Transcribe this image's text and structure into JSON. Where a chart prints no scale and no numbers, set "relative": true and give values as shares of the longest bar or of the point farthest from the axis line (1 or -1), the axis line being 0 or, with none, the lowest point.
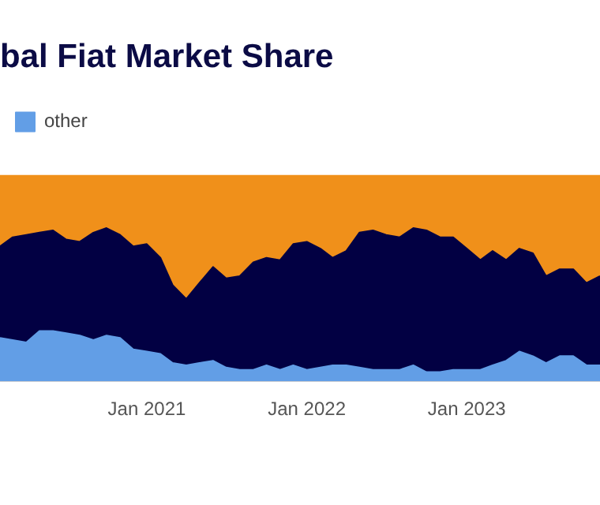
{
  "chart_data": {
    "type": "area",
    "title": "bal Fiat Market Share",
    "stacked": true,
    "relative": true,
    "legend": "top left",
    "grid": false,
    "x": [
      "2020-02",
      "2020-03",
      "2020-04",
      "2020-05",
      "2020-06",
      "2020-07",
      "2020-08",
      "2020-09",
      "2020-10",
      "2020-11",
      "2020-12",
      "2021-01",
      "2021-02",
      "2021-03",
      "2021-04",
      "2021-05",
      "2021-06",
      "2021-07",
      "2021-08",
      "2021-09",
      "2021-10",
      "2021-11",
      "2021-12",
      "2022-01",
      "2022-02",
      "2022-03",
      "2022-04",
      "2022-05",
      "2022-06",
      "2022-07",
      "2022-08",
      "2022-09",
      "2022-10",
      "2022-11",
      "2022-12",
      "2023-01",
      "2023-02",
      "2023-03",
      "2023-04",
      "2023-05",
      "2023-06",
      "2023-07",
      "2023-08",
      "2023-09",
      "2023-10",
      "2023-11"
    ],
    "xlim": [
      "2020-02",
      "2023-11"
    ],
    "xticks": [
      {
        "value": "2021-01",
        "label": "Jan 2021"
      },
      {
        "value": "2022-01",
        "label": "Jan 2022"
      },
      {
        "value": "2023-01",
        "label": "Jan 2023"
      }
    ],
    "series": [
      {
        "name": "other",
        "color": "#629ee6",
        "values": [
          0.29,
          0.28,
          0.27,
          0.32,
          0.32,
          0.31,
          0.3,
          0.28,
          0.3,
          0.29,
          0.24,
          0.23,
          0.22,
          0.18,
          0.17,
          0.18,
          0.19,
          0.16,
          0.15,
          0.15,
          0.17,
          0.15,
          0.17,
          0.15,
          0.16,
          0.17,
          0.17,
          0.16,
          0.15,
          0.15,
          0.15,
          0.17,
          0.14,
          0.14,
          0.15,
          0.15,
          0.15,
          0.17,
          0.19,
          0.23,
          0.21,
          0.18,
          0.21,
          0.21,
          0.17,
          0.17
        ]
      },
      {
        "color": "#020043",
        "values": [
          0.4,
          0.45,
          0.47,
          0.43,
          0.44,
          0.41,
          0.41,
          0.47,
          0.47,
          0.45,
          0.45,
          0.47,
          0.42,
          0.34,
          0.29,
          0.35,
          0.41,
          0.39,
          0.41,
          0.47,
          0.47,
          0.48,
          0.53,
          0.56,
          0.52,
          0.47,
          0.5,
          0.59,
          0.61,
          0.59,
          0.58,
          0.6,
          0.62,
          0.59,
          0.58,
          0.53,
          0.48,
          0.5,
          0.44,
          0.45,
          0.45,
          0.38,
          0.38,
          0.38,
          0.36,
          0.39
        ]
      },
      {
        "color": "#f0901a",
        "values": [
          0.31,
          0.27,
          0.26,
          0.25,
          0.24,
          0.28,
          0.29,
          0.25,
          0.23,
          0.26,
          0.31,
          0.3,
          0.36,
          0.48,
          0.54,
          0.47,
          0.4,
          0.45,
          0.44,
          0.38,
          0.36,
          0.37,
          0.3,
          0.29,
          0.32,
          0.36,
          0.33,
          0.25,
          0.24,
          0.26,
          0.27,
          0.23,
          0.24,
          0.27,
          0.27,
          0.32,
          0.37,
          0.33,
          0.37,
          0.32,
          0.34,
          0.44,
          0.41,
          0.41,
          0.47,
          0.44
        ]
      }
    ]
  }
}
